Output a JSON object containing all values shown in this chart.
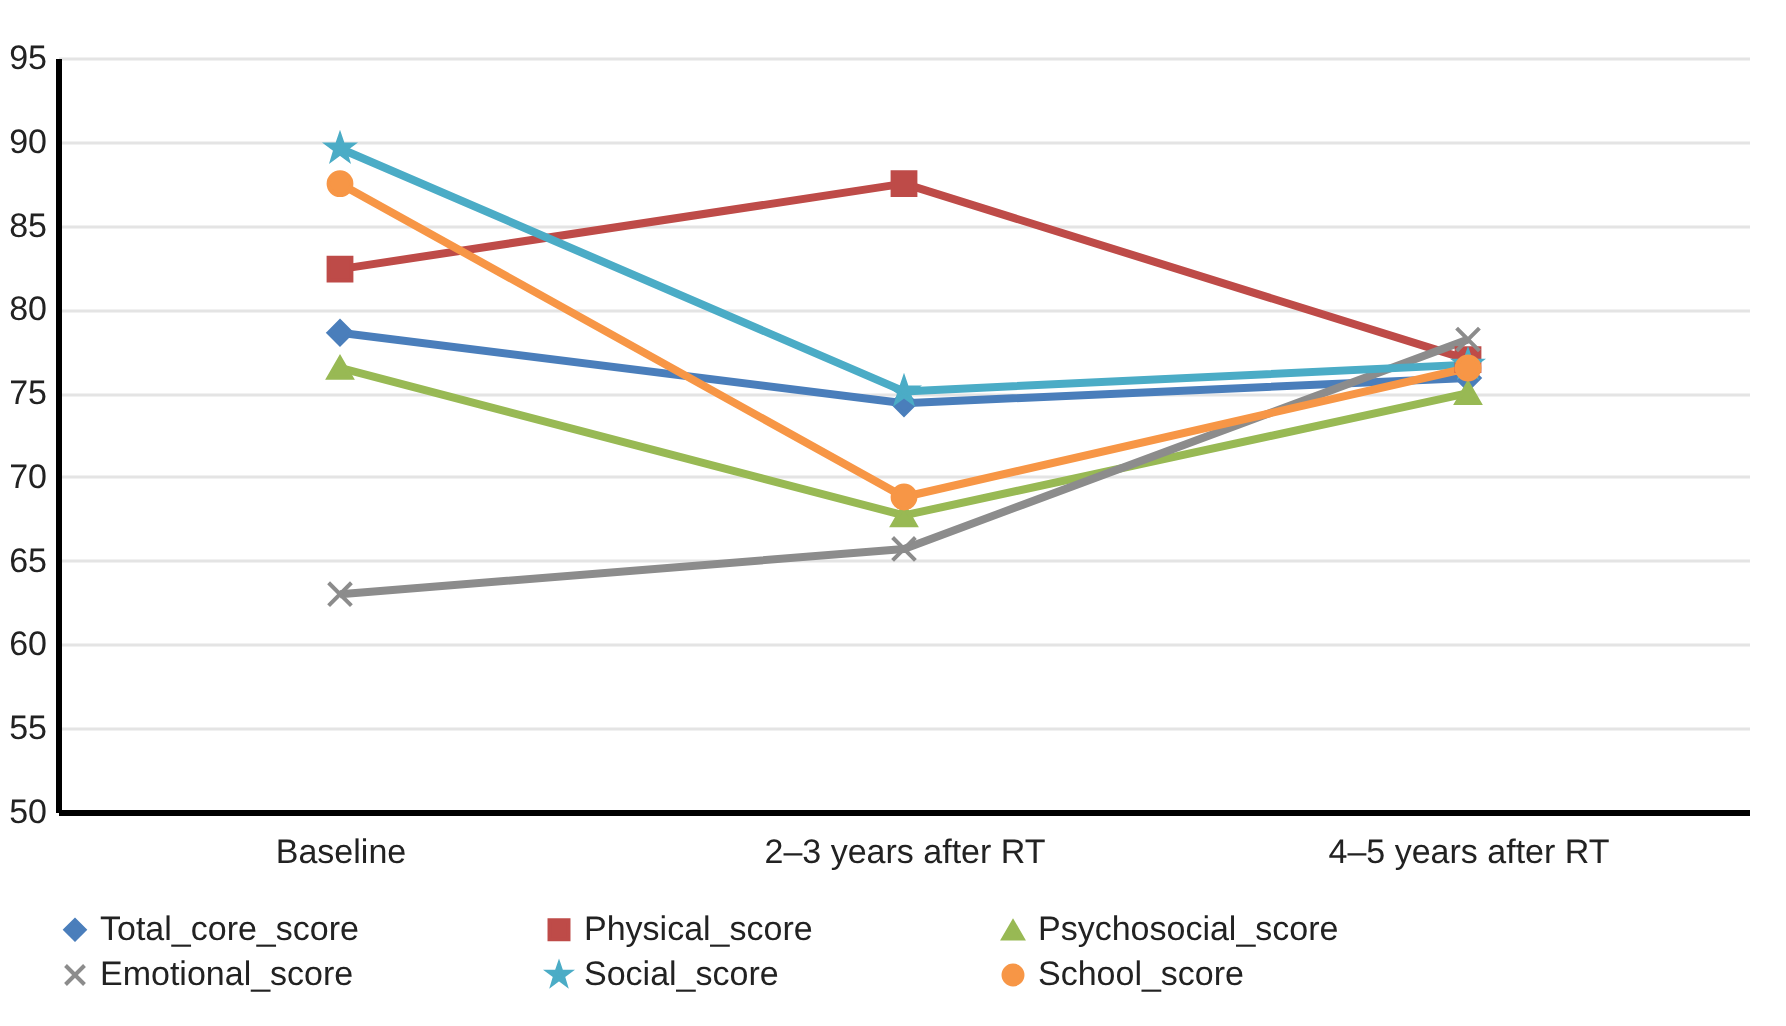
{
  "chart_data": {
    "type": "line",
    "categories": [
      "Baseline",
      "2–3 years after RT",
      "4–5 years after RT"
    ],
    "ylim": [
      50,
      95
    ],
    "yticks": [
      50,
      55,
      60,
      65,
      70,
      75,
      80,
      85,
      90,
      95
    ],
    "grid": "y",
    "legend": "bottom",
    "line_style": "solid",
    "series": [
      {
        "name": "Total_core_score",
        "color": "#4a7ebb",
        "marker": "diamond",
        "values": [
          78.6,
          74.4,
          75.9
        ]
      },
      {
        "name": "Physical_score",
        "color": "#be4b48",
        "marker": "square",
        "values": [
          82.4,
          87.5,
          77.0
        ]
      },
      {
        "name": "Psychosocial_score",
        "color": "#98b954",
        "marker": "triangle",
        "values": [
          76.5,
          67.7,
          75.0
        ]
      },
      {
        "name": "Emotional_score",
        "color": "#8c8c8c",
        "marker": "cross",
        "values": [
          63.0,
          65.7,
          78.2
        ]
      },
      {
        "name": "Social_score",
        "color": "#4bacc6",
        "marker": "star",
        "values": [
          89.6,
          75.1,
          76.7
        ]
      },
      {
        "name": "School_score",
        "color": "#f79646",
        "marker": "circle",
        "values": [
          87.5,
          68.8,
          76.5
        ]
      }
    ]
  }
}
